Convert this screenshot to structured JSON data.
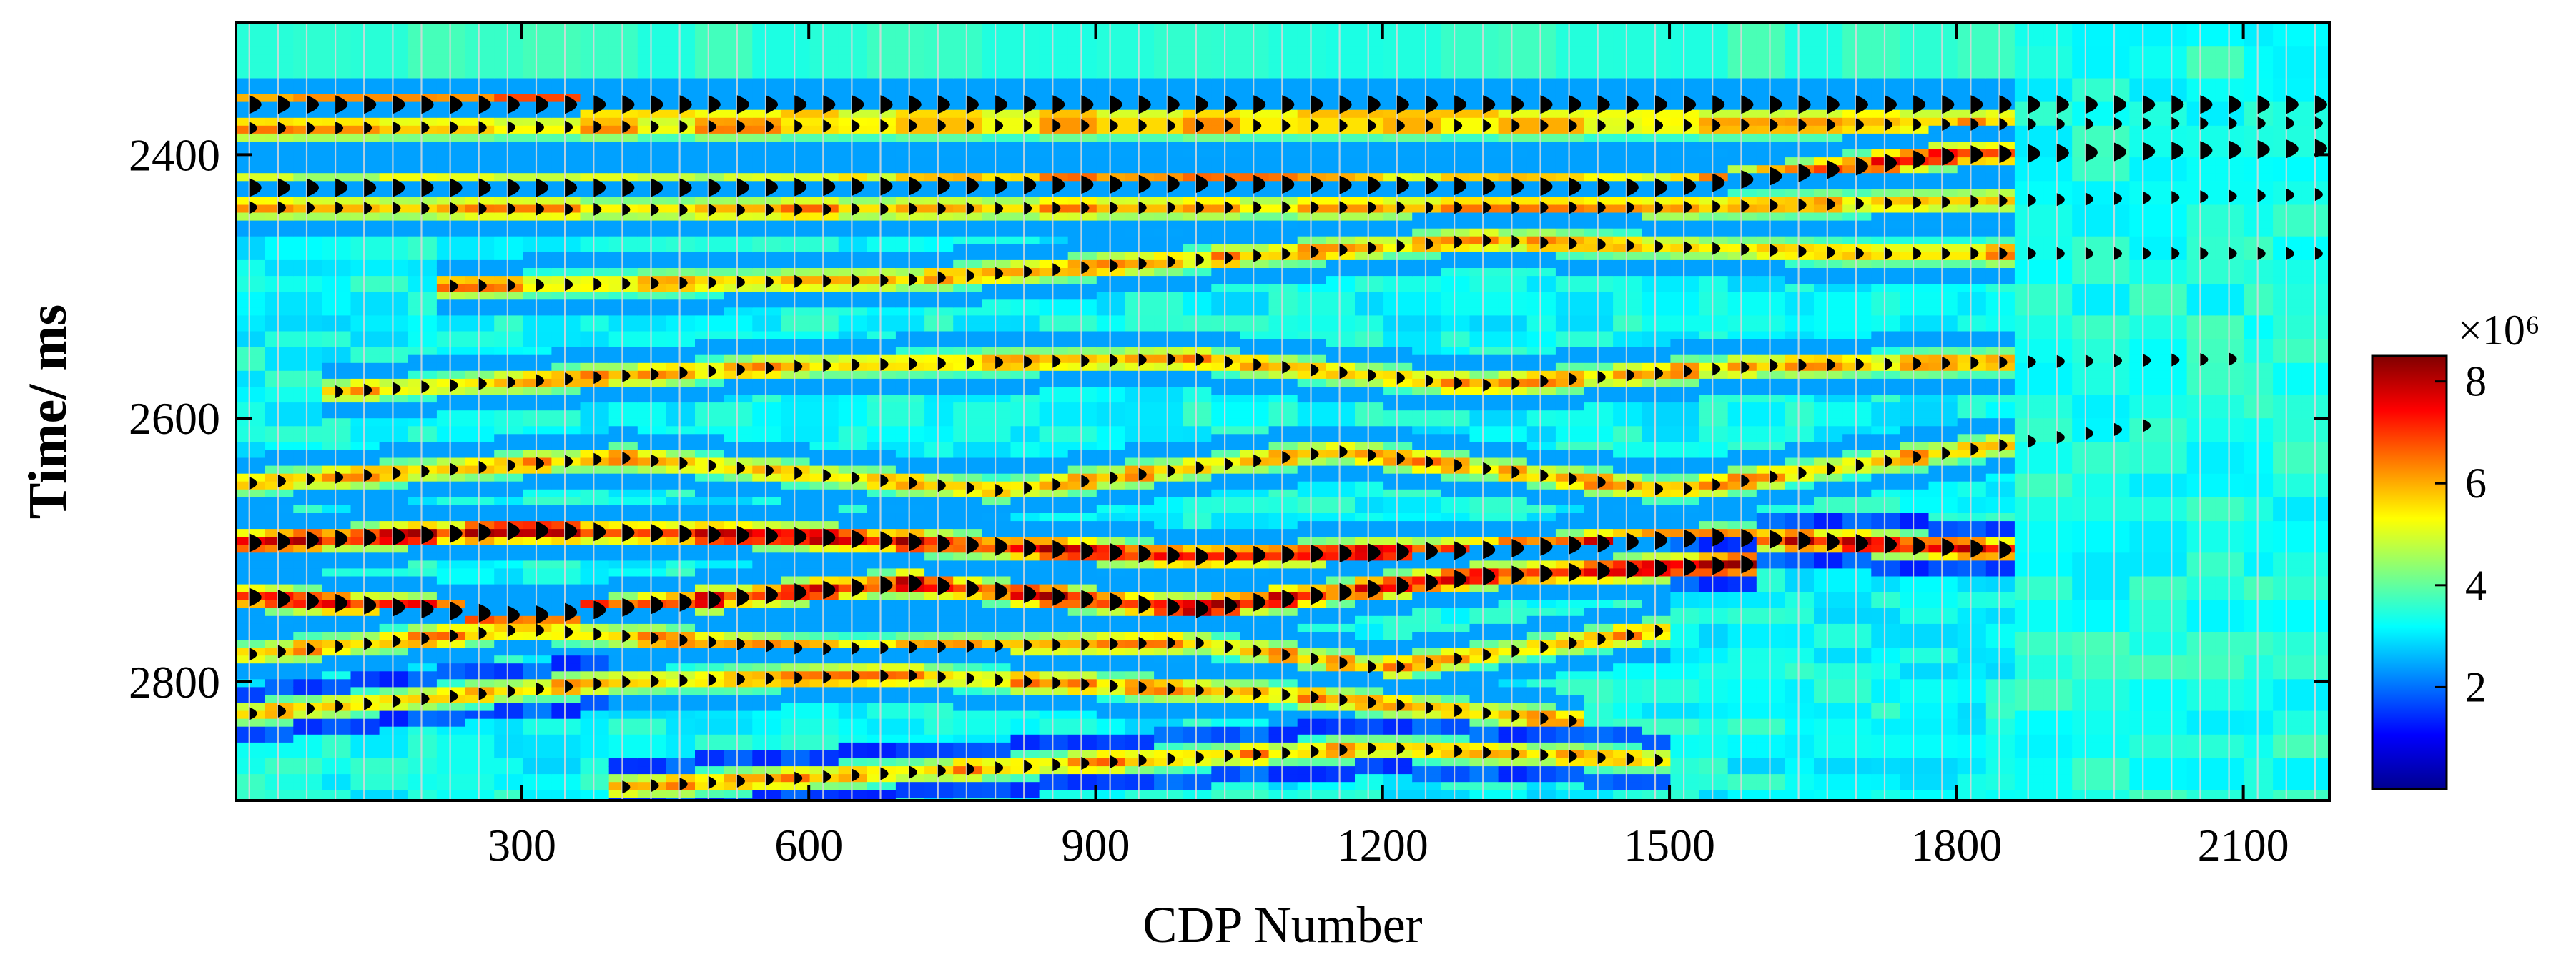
{
  "chart_data": {
    "type": "heatmap",
    "title": "",
    "xlabel": "CDP Number",
    "ylabel": "Time/ ms",
    "xlim": [
      1,
      2190
    ],
    "ylim": [
      2300,
      2890
    ],
    "y_inverted": true,
    "x_ticks": [
      300,
      600,
      900,
      1200,
      1500,
      1800,
      2100
    ],
    "y_ticks": [
      2400,
      2600,
      2800
    ],
    "x_tick_labels": [
      "300",
      "600",
      "900",
      "1200",
      "1500",
      "1800",
      "2100"
    ],
    "y_tick_labels": [
      "2400",
      "2600",
      "2800"
    ],
    "trace_spacing_cdp": 30,
    "grid": false,
    "colorbar": {
      "position": "right",
      "colormap": "jet",
      "range": [
        0,
        8.5
      ],
      "ticks": [
        2,
        4,
        6,
        8
      ],
      "tick_labels": [
        "2",
        "4",
        "6",
        "8"
      ],
      "exponent_label": "×10⁶"
    },
    "reflectors": [
      {
        "kind": "strong",
        "points": [
          [
            0,
            2362
          ],
          [
            600,
            2362
          ],
          [
            1200,
            2362
          ],
          [
            1800,
            2362
          ],
          [
            2190,
            2362
          ]
        ]
      },
      {
        "kind": "medium",
        "points": [
          [
            0,
            2380
          ],
          [
            700,
            2378
          ],
          [
            1400,
            2378
          ],
          [
            2190,
            2376
          ]
        ]
      },
      {
        "kind": "strong",
        "points": [
          [
            0,
            2425
          ],
          [
            500,
            2425
          ],
          [
            1000,
            2422
          ],
          [
            1500,
            2425
          ],
          [
            1800,
            2400
          ],
          [
            2190,
            2395
          ]
        ]
      },
      {
        "kind": "medium",
        "points": [
          [
            0,
            2440
          ],
          [
            500,
            2442
          ],
          [
            1000,
            2440
          ],
          [
            1500,
            2440
          ],
          [
            2190,
            2430
          ]
        ]
      },
      {
        "kind": "medium",
        "points": [
          [
            200,
            2500
          ],
          [
            700,
            2495
          ],
          [
            1300,
            2465
          ],
          [
            1700,
            2475
          ],
          [
            2190,
            2475
          ]
        ]
      },
      {
        "kind": "medium",
        "points": [
          [
            100,
            2580
          ],
          [
            600,
            2560
          ],
          [
            1000,
            2555
          ],
          [
            1300,
            2575
          ],
          [
            1600,
            2560
          ],
          [
            2100,
            2555
          ]
        ]
      },
      {
        "kind": "medium",
        "points": [
          [
            0,
            2650
          ],
          [
            400,
            2630
          ],
          [
            800,
            2655
          ],
          [
            1150,
            2625
          ],
          [
            1500,
            2655
          ],
          [
            2000,
            2605
          ]
        ]
      },
      {
        "kind": "strong",
        "points": [
          [
            0,
            2695
          ],
          [
            300,
            2685
          ],
          [
            600,
            2690
          ],
          [
            1000,
            2705
          ],
          [
            1300,
            2700
          ],
          [
            1550,
            2690
          ],
          [
            1850,
            2700
          ]
        ]
      },
      {
        "kind": "strong",
        "points": [
          [
            0,
            2735
          ],
          [
            300,
            2750
          ],
          [
            700,
            2725
          ],
          [
            1000,
            2745
          ],
          [
            1300,
            2720
          ],
          [
            1600,
            2710
          ]
        ]
      },
      {
        "kind": "medium",
        "points": [
          [
            0,
            2780
          ],
          [
            300,
            2760
          ],
          [
            600,
            2775
          ],
          [
            1000,
            2770
          ],
          [
            1200,
            2790
          ],
          [
            1500,
            2760
          ]
        ]
      },
      {
        "kind": "medium",
        "points": [
          [
            0,
            2825
          ],
          [
            400,
            2800
          ],
          [
            700,
            2795
          ],
          [
            1100,
            2810
          ],
          [
            1400,
            2830
          ]
        ]
      },
      {
        "kind": "medium",
        "points": [
          [
            400,
            2880
          ],
          [
            800,
            2865
          ],
          [
            1200,
            2850
          ],
          [
            1500,
            2860
          ]
        ]
      }
    ]
  },
  "colors": {
    "colormap_stops": [
      "#00008f",
      "#0000ff",
      "#0080ff",
      "#00ffff",
      "#80ff80",
      "#ffff00",
      "#ff8000",
      "#ff0000",
      "#800000"
    ],
    "axis": "#000000",
    "trace_line": "#d8d8d8",
    "wiggle_fill": "#000000"
  }
}
